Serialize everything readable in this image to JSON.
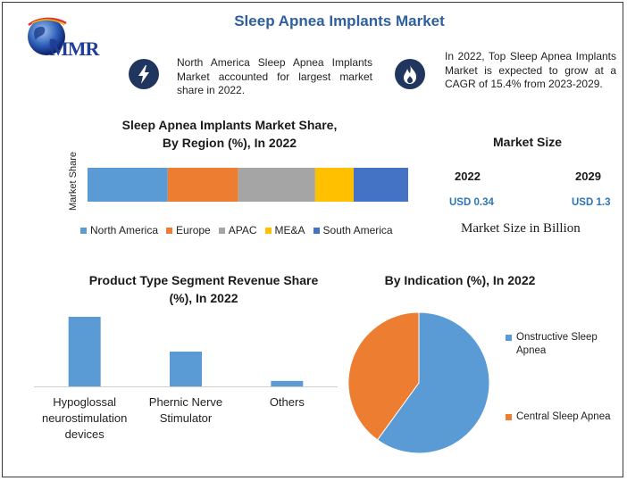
{
  "header": {
    "title": "Sleep Apnea Implants Market",
    "logo_text": "MMR"
  },
  "info_left": {
    "icon": "lightning-icon",
    "text": "North America Sleep Apnea Implants Market accounted for largest market share in 2022."
  },
  "info_right": {
    "icon": "flame-icon",
    "text": "In 2022, Top Sleep Apnea Implants Market is expected to grow at a CAGR of 15.4% from 2023-2029."
  },
  "market_size": {
    "heading": "Market Size",
    "year1": "2022",
    "value1": "USD 0.34",
    "year2": "2029",
    "value2": "USD 1.3",
    "footnote": "Market Size in Billion"
  },
  "colors": {
    "blue": "#5b9bd5",
    "orange": "#ed7d31",
    "gray": "#a5a5a5",
    "yellow": "#ffc000",
    "darkblue": "#4472c4",
    "title": "#2e5f9e"
  },
  "chart_data": [
    {
      "type": "bar",
      "orientation": "horizontal-stacked",
      "title": "Sleep Apnea Implants Market Share, By Region (%), In 2022",
      "title_line1": "Sleep Apnea Implants Market Share,",
      "title_line2": "By Region (%), In 2022",
      "ylabel": "Market Share",
      "categories": [
        "Market Share"
      ],
      "series": [
        {
          "name": "North America",
          "values": [
            25
          ],
          "color": "#5b9bd5"
        },
        {
          "name": "Europe",
          "values": [
            22
          ],
          "color": "#ed7d31"
        },
        {
          "name": "APAC",
          "values": [
            24
          ],
          "color": "#a5a5a5"
        },
        {
          "name": "ME&A",
          "values": [
            12
          ],
          "color": "#ffc000"
        },
        {
          "name": "South America",
          "values": [
            17
          ],
          "color": "#4472c4"
        }
      ],
      "legend": "bottom",
      "grid": false
    },
    {
      "type": "bar",
      "title": "Product Type Segment Revenue Share (%), In 2022",
      "title_line1": "Product Type Segment Revenue Share",
      "title_line2": "(%), In 2022",
      "categories": [
        "Hypoglossal neurostimulation devices",
        "Phernic Nerve Stimulator",
        "Others"
      ],
      "category_lines": [
        [
          "Hypoglossal",
          "neurostimulation",
          "devices"
        ],
        [
          "Phernic Nerve",
          "Stimulator"
        ],
        [
          "Others"
        ]
      ],
      "values": [
        76,
        38,
        6
      ],
      "color": "#5b9bd5",
      "grid": false
    },
    {
      "type": "pie",
      "title": "By Indication (%), In 2022",
      "labels": [
        "Onstructive Sleep Apnea",
        "Central Sleep Apnea"
      ],
      "values": [
        60,
        40
      ],
      "colors": [
        "#5b9bd5",
        "#ed7d31"
      ],
      "legend": "right"
    }
  ]
}
